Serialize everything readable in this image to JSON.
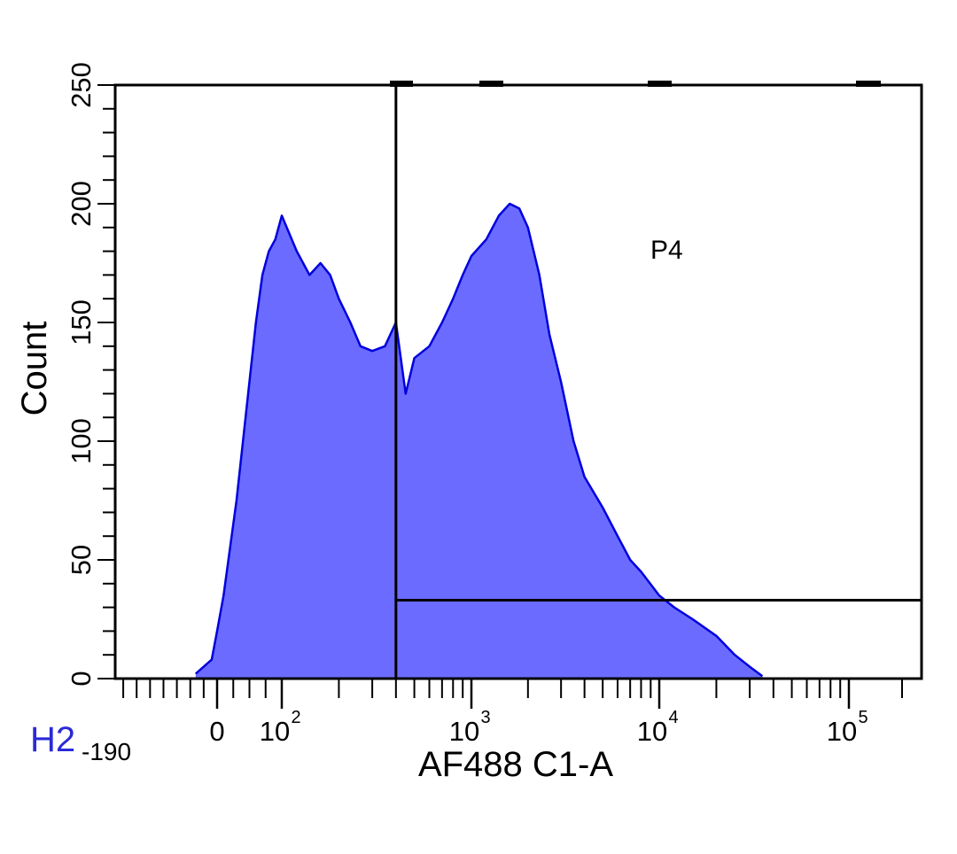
{
  "plot_id": "H2",
  "chart_data": {
    "type": "area",
    "title": "",
    "xlabel": "AF488 C1-A",
    "ylabel": "Count",
    "x_scale": "biexponential",
    "x_min_label": "-190",
    "xlim": [
      -190,
      200000
    ],
    "ylim": [
      0,
      250
    ],
    "y_ticks": [
      "0",
      "50",
      "100",
      "150",
      "200",
      "250"
    ],
    "x_ticks": [
      {
        "value": 0,
        "label": "0"
      },
      {
        "value": 100,
        "label": "10",
        "exp": "2"
      },
      {
        "value": 1000,
        "label": "10",
        "exp": "3"
      },
      {
        "value": 10000,
        "label": "10",
        "exp": "4"
      },
      {
        "value": 100000,
        "label": "10",
        "exp": "5"
      }
    ],
    "colors": {
      "fill": "#6b6bff",
      "line": "#0000dd",
      "gate": "#000000"
    },
    "series": [
      {
        "x": [
          -40,
          -10,
          0,
          10,
          20,
          30,
          40,
          50,
          60,
          70,
          80,
          90,
          100,
          120,
          140,
          160,
          180,
          200,
          230,
          260,
          300,
          350,
          400,
          450,
          500,
          600,
          700,
          800,
          900,
          1000,
          1200,
          1400,
          1600,
          1800,
          2000,
          2300,
          2600,
          3000,
          3500,
          4000,
          5000,
          6000,
          7000,
          8000,
          10000,
          12000,
          15000,
          20000,
          25000,
          30000,
          35000
        ],
        "values": [
          2,
          8,
          20,
          35,
          55,
          75,
          100,
          125,
          150,
          170,
          180,
          185,
          195,
          180,
          170,
          175,
          170,
          160,
          150,
          140,
          138,
          140,
          150,
          120,
          135,
          140,
          150,
          160,
          170,
          178,
          185,
          195,
          200,
          198,
          190,
          170,
          145,
          125,
          100,
          85,
          72,
          60,
          50,
          45,
          35,
          30,
          25,
          18,
          10,
          5,
          1
        ]
      }
    ],
    "gates": [
      {
        "name": "P4",
        "type": "bisector",
        "label": "P4",
        "x_start": 400,
        "y_level": 33
      }
    ]
  }
}
